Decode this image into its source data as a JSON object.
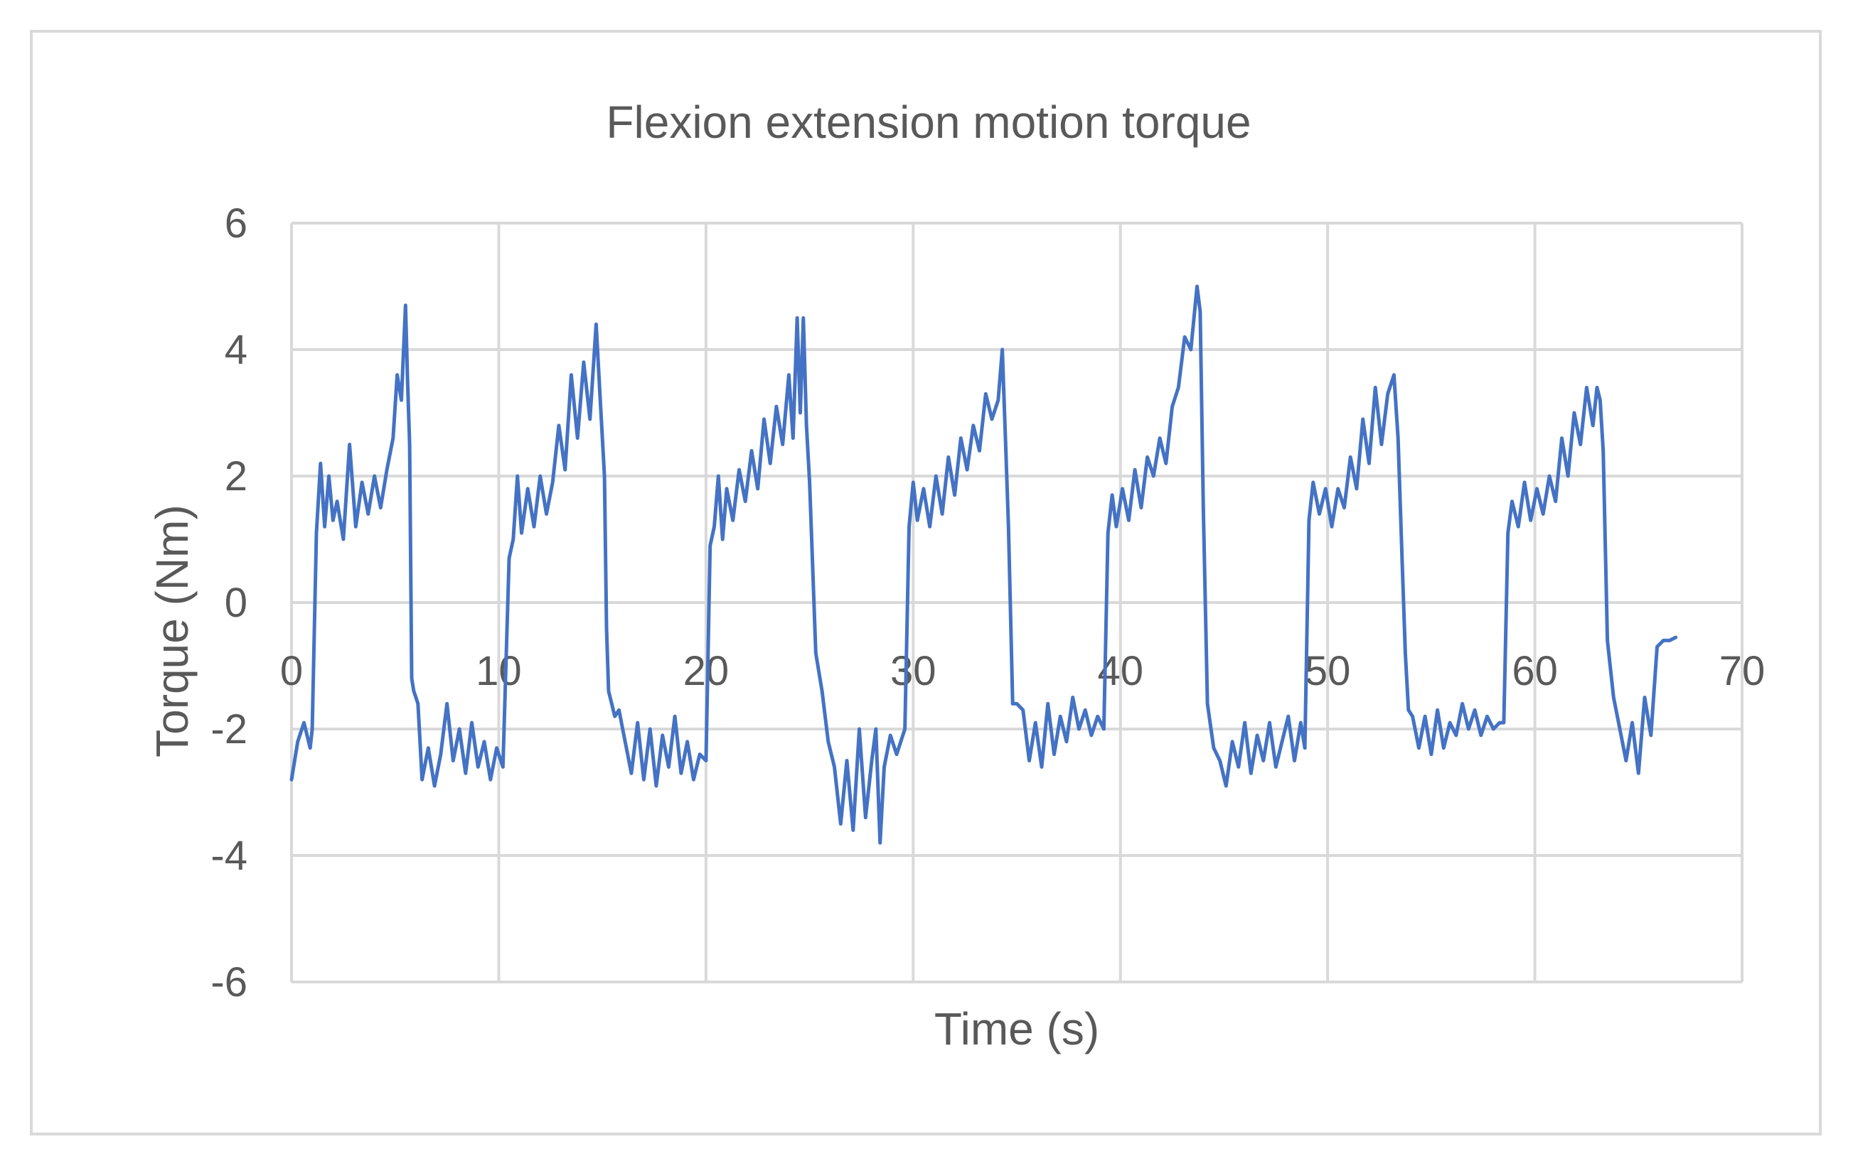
{
  "chart_data": {
    "type": "line",
    "title": "Flexion extension motion torque",
    "xlabel": "Time (s)",
    "ylabel": "Torque (Nm)",
    "xlim": [
      0,
      70
    ],
    "ylim": [
      -6,
      6
    ],
    "xticks": [
      "0",
      "10",
      "20",
      "30",
      "40",
      "50",
      "60",
      "70"
    ],
    "yticks": [
      "6",
      "4",
      "2",
      "0",
      "-2",
      "-4",
      "-6"
    ],
    "grid": true,
    "legend": "none",
    "colors": {
      "line": "#4472C4",
      "grid": "#d9d9d9",
      "text": "#595959"
    },
    "series": [
      {
        "x": [
          0,
          0.3,
          0.6,
          0.9,
          1.0,
          1.2,
          1.4,
          1.6,
          1.8,
          2.0,
          2.2,
          2.5,
          2.8,
          3.1,
          3.4,
          3.7,
          4.0,
          4.3,
          4.6,
          4.9,
          5.1,
          5.3,
          5.5,
          5.6,
          5.7,
          5.8,
          5.9,
          6.0,
          6.1,
          6.3,
          6.6,
          6.9,
          7.2,
          7.5,
          7.8,
          8.1,
          8.4,
          8.7,
          9.0,
          9.3,
          9.6,
          9.9,
          10.2,
          10.5,
          10.7,
          10.9,
          11.1,
          11.4,
          11.7,
          12.0,
          12.3,
          12.6,
          12.9,
          13.2,
          13.5,
          13.8,
          14.1,
          14.4,
          14.7,
          14.9,
          15.1,
          15.2,
          15.3,
          15.45,
          15.6,
          15.8,
          16.1,
          16.4,
          16.7,
          17.0,
          17.3,
          17.6,
          17.9,
          18.2,
          18.5,
          18.8,
          19.1,
          19.4,
          19.7,
          20.0,
          20.2,
          20.4,
          20.6,
          20.8,
          21.0,
          21.3,
          21.6,
          21.9,
          22.2,
          22.5,
          22.8,
          23.1,
          23.4,
          23.7,
          24.0,
          24.2,
          24.4,
          24.55,
          24.7,
          24.85,
          25.0,
          25.3,
          25.6,
          25.9,
          26.2,
          26.5,
          26.8,
          27.1,
          27.4,
          27.7,
          28.0,
          28.2,
          28.4,
          28.6,
          28.9,
          29.2,
          29.6,
          29.8,
          30.0,
          30.2,
          30.5,
          30.8,
          31.1,
          31.4,
          31.7,
          32.0,
          32.3,
          32.6,
          32.9,
          33.2,
          33.5,
          33.8,
          34.1,
          34.3,
          34.45,
          34.6,
          34.8,
          35.0,
          35.3,
          35.6,
          35.9,
          36.2,
          36.5,
          36.8,
          37.1,
          37.4,
          37.7,
          38.0,
          38.3,
          38.6,
          38.9,
          39.2,
          39.4,
          39.6,
          39.8,
          40.1,
          40.4,
          40.7,
          41.0,
          41.3,
          41.6,
          41.9,
          42.2,
          42.5,
          42.8,
          43.1,
          43.4,
          43.7,
          43.85,
          44.0,
          44.2,
          44.5,
          44.8,
          45.1,
          45.4,
          45.7,
          46.0,
          46.3,
          46.6,
          46.9,
          47.2,
          47.5,
          47.8,
          48.1,
          48.4,
          48.7,
          48.9,
          49.1,
          49.3,
          49.6,
          49.9,
          50.2,
          50.5,
          50.8,
          51.1,
          51.4,
          51.7,
          52.0,
          52.3,
          52.6,
          52.9,
          53.2,
          53.4,
          53.6,
          53.75,
          53.9,
          54.1,
          54.4,
          54.7,
          55.0,
          55.3,
          55.6,
          55.9,
          56.2,
          56.5,
          56.8,
          57.1,
          57.4,
          57.7,
          58.0,
          58.3,
          58.5,
          58.7,
          58.9,
          59.2,
          59.5,
          59.8,
          60.1,
          60.4,
          60.7,
          61.0,
          61.3,
          61.6,
          61.9,
          62.2,
          62.5,
          62.8,
          63.0,
          63.15,
          63.3,
          63.5,
          63.8,
          64.1,
          64.4,
          64.7,
          65.0,
          65.3,
          65.6,
          65.9,
          66.2,
          66.5,
          66.8
        ],
        "y": [
          -2.8,
          -2.2,
          -1.9,
          -2.3,
          -2.0,
          1.1,
          2.2,
          1.2,
          2.0,
          1.3,
          1.6,
          1.0,
          2.5,
          1.2,
          1.9,
          1.4,
          2.0,
          1.5,
          2.1,
          2.6,
          3.6,
          3.2,
          4.7,
          3.5,
          2.5,
          -1.2,
          -1.4,
          -1.5,
          -1.6,
          -2.8,
          -2.3,
          -2.9,
          -2.4,
          -1.6,
          -2.5,
          -2.0,
          -2.7,
          -1.9,
          -2.6,
          -2.2,
          -2.8,
          -2.3,
          -2.6,
          0.7,
          1.0,
          2.0,
          1.1,
          1.8,
          1.2,
          2.0,
          1.4,
          1.9,
          2.8,
          2.1,
          3.6,
          2.6,
          3.8,
          2.9,
          4.4,
          3.2,
          2.0,
          -0.4,
          -1.4,
          -1.6,
          -1.8,
          -1.7,
          -2.2,
          -2.7,
          -1.9,
          -2.8,
          -2.0,
          -2.9,
          -2.1,
          -2.6,
          -1.8,
          -2.7,
          -2.2,
          -2.8,
          -2.4,
          -2.5,
          0.9,
          1.2,
          2.0,
          1.0,
          1.8,
          1.3,
          2.1,
          1.6,
          2.4,
          1.8,
          2.9,
          2.2,
          3.1,
          2.5,
          3.6,
          2.6,
          4.5,
          3.0,
          4.5,
          2.8,
          1.9,
          -0.8,
          -1.4,
          -2.2,
          -2.6,
          -3.5,
          -2.5,
          -3.6,
          -2.0,
          -3.4,
          -2.5,
          -2.0,
          -3.8,
          -2.6,
          -2.1,
          -2.4,
          -2.0,
          1.2,
          1.9,
          1.3,
          1.8,
          1.2,
          2.0,
          1.4,
          2.3,
          1.7,
          2.6,
          2.1,
          2.8,
          2.4,
          3.3,
          2.9,
          3.2,
          4.0,
          2.6,
          1.2,
          -1.6,
          -1.6,
          -1.7,
          -2.5,
          -1.9,
          -2.6,
          -1.6,
          -2.4,
          -1.8,
          -2.2,
          -1.5,
          -2.0,
          -1.7,
          -2.1,
          -1.8,
          -2.0,
          1.1,
          1.7,
          1.2,
          1.8,
          1.3,
          2.1,
          1.5,
          2.3,
          2.0,
          2.6,
          2.2,
          3.1,
          3.4,
          4.2,
          4.0,
          5.0,
          4.6,
          1.5,
          -1.6,
          -2.3,
          -2.5,
          -2.9,
          -2.2,
          -2.6,
          -1.9,
          -2.7,
          -2.1,
          -2.5,
          -1.9,
          -2.6,
          -2.2,
          -1.8,
          -2.5,
          -1.9,
          -2.3,
          1.3,
          1.9,
          1.4,
          1.8,
          1.2,
          1.8,
          1.5,
          2.3,
          1.8,
          2.9,
          2.2,
          3.4,
          2.5,
          3.3,
          3.6,
          2.6,
          0.6,
          -0.8,
          -1.7,
          -1.8,
          -2.3,
          -1.8,
          -2.4,
          -1.7,
          -2.3,
          -1.9,
          -2.1,
          -1.6,
          -2.0,
          -1.7,
          -2.1,
          -1.8,
          -2.0,
          -1.9,
          -1.9,
          1.1,
          1.6,
          1.2,
          1.9,
          1.3,
          1.8,
          1.4,
          2.0,
          1.6,
          2.6,
          2.0,
          3.0,
          2.5,
          3.4,
          2.8,
          3.4,
          3.2,
          2.4,
          -0.6,
          -1.5,
          -2.0,
          -2.5,
          -1.9,
          -2.7,
          -1.5,
          -2.1,
          -0.7,
          -0.6,
          -0.6,
          -0.55
        ]
      }
    ]
  }
}
